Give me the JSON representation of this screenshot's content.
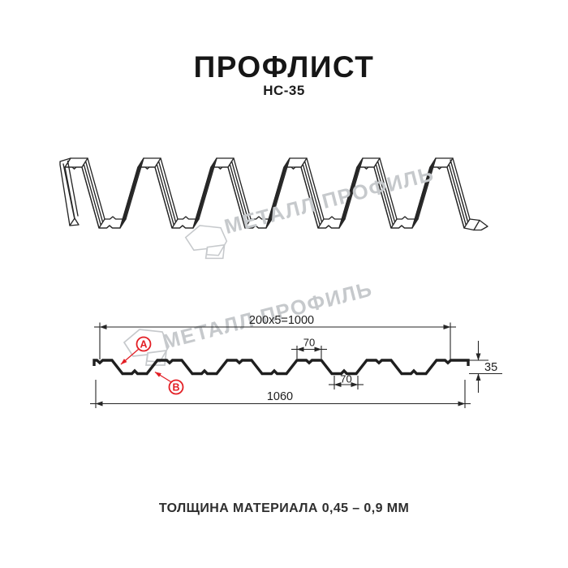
{
  "title": "ПРОФЛИСТ",
  "subtitle": "НС-35",
  "watermark": {
    "text": "МЕТАЛЛ ПРОФИЛЬ"
  },
  "section": {
    "dim_top_pitch": "200x5=1000",
    "dim_flange_width": "70",
    "dim_valley_width": "70",
    "dim_height": "35",
    "dim_total_width": "1060",
    "marker_a": "A",
    "marker_b": "B"
  },
  "footer_note": "ТОЛЩИНА МАТЕРИАЛА 0,45 – 0,9 ММ",
  "colors": {
    "line": "#262626",
    "accent_red": "#e31e24",
    "watermark": "#c6c9cc"
  }
}
